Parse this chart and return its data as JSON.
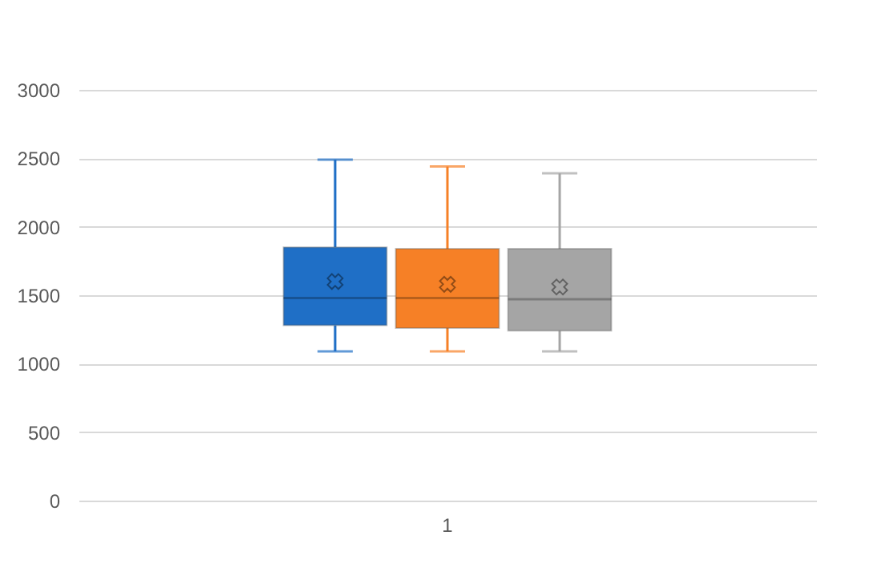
{
  "chart_data": {
    "type": "box",
    "categories": [
      "1"
    ],
    "series": [
      {
        "color": "#1f6fc6",
        "boxes": [
          {
            "low": 1090,
            "q1": 1280,
            "median": 1480,
            "q3": 1850,
            "high": 2490,
            "mean": 1600
          }
        ]
      },
      {
        "color": "#f68026",
        "boxes": [
          {
            "low": 1090,
            "q1": 1260,
            "median": 1480,
            "q3": 1840,
            "high": 2440,
            "mean": 1580
          }
        ]
      },
      {
        "color": "#a5a5a5",
        "boxes": [
          {
            "low": 1090,
            "q1": 1240,
            "median": 1470,
            "q3": 1840,
            "high": 2390,
            "mean": 1560
          }
        ]
      }
    ],
    "ylim": [
      0,
      3000
    ],
    "yticks": [
      0,
      500,
      1000,
      1500,
      2000,
      2500,
      3000
    ],
    "grid": "y",
    "legend": false
  }
}
